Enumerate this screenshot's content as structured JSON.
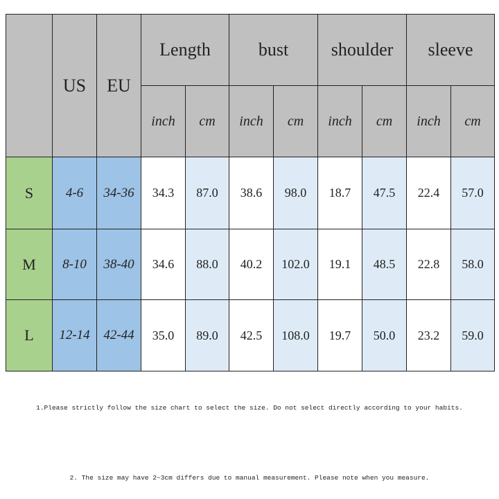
{
  "table": {
    "headers": {
      "us": "US",
      "eu": "EU",
      "groups": [
        "Length",
        "bust",
        "shoulder",
        "sleeve"
      ],
      "units": [
        "inch",
        "cm"
      ]
    },
    "rows": [
      {
        "size": "S",
        "us": "4-6",
        "eu": "34-36",
        "values": [
          "34.3",
          "87.0",
          "38.6",
          "98.0",
          "18.7",
          "47.5",
          "22.4",
          "57.0"
        ]
      },
      {
        "size": "M",
        "us": "8-10",
        "eu": "38-40",
        "values": [
          "34.6",
          "88.0",
          "40.2",
          "102.0",
          "19.1",
          "48.5",
          "22.8",
          "58.0"
        ]
      },
      {
        "size": "L",
        "us": "12-14",
        "eu": "42-44",
        "values": [
          "35.0",
          "89.0",
          "42.5",
          "108.0",
          "19.7",
          "50.0",
          "23.2",
          "59.0"
        ]
      }
    ]
  },
  "colors": {
    "header": "#c0c0c0",
    "size": "#a9d18e",
    "region": "#9dc3e6",
    "cm": "#deebf7"
  },
  "notes": [
    "1.Please strictly follow the size chart to select the size. Do not select directly according to your habits.",
    "2. The size may have 2~3cm differs due to manual measurement. Please note when you measure."
  ]
}
